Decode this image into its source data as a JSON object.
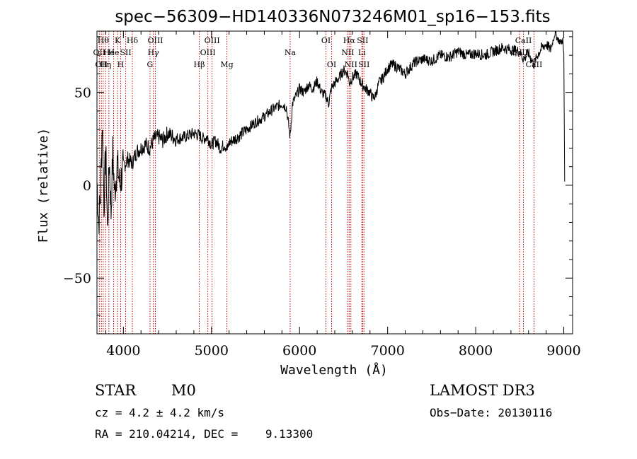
{
  "chart_data": {
    "type": "line",
    "title": "spec−56309−HD140336N073246M01_sp16−153.fits",
    "xlabel": "Wavelength (Å)",
    "ylabel": "Flux (relative)",
    "xlim": [
      3700,
      9100
    ],
    "ylim": [
      -80,
      83
    ],
    "xticks": [
      4000,
      5000,
      6000,
      7000,
      8000,
      9000
    ],
    "xtick_labels": [
      "4000",
      "5000",
      "6000",
      "7000",
      "8000",
      "9000"
    ],
    "yticks": [
      -50,
      0,
      50
    ],
    "ytick_labels": [
      "−50",
      "0",
      "50"
    ],
    "grid": false,
    "spectrum": {
      "name": "flux",
      "x": [
        3700,
        3720,
        3740,
        3760,
        3780,
        3800,
        3820,
        3840,
        3860,
        3880,
        3900,
        3930,
        3960,
        4000,
        4050,
        4100,
        4150,
        4200,
        4250,
        4300,
        4350,
        4400,
        4450,
        4500,
        4600,
        4700,
        4800,
        4860,
        4900,
        4950,
        5000,
        5050,
        5100,
        5150,
        5180,
        5200,
        5300,
        5400,
        5500,
        5600,
        5700,
        5800,
        5850,
        5893,
        5920,
        5960,
        6000,
        6050,
        6100,
        6150,
        6200,
        6250,
        6300,
        6330,
        6360,
        6400,
        6450,
        6500,
        6550,
        6563,
        6600,
        6650,
        6700,
        6750,
        6800,
        6830,
        6860,
        6900,
        6950,
        7000,
        7050,
        7100,
        7200,
        7300,
        7400,
        7500,
        7600,
        7700,
        7800,
        7900,
        8000,
        8100,
        8200,
        8300,
        8400,
        8500,
        8542,
        8600,
        8662,
        8700,
        8750,
        8800,
        8850,
        8900,
        8930,
        8960,
        8990,
        9000,
        9010
      ],
      "y": [
        2,
        -20,
        -5,
        35,
        -10,
        20,
        -25,
        15,
        -15,
        18,
        -5,
        12,
        0,
        10,
        14,
        12,
        18,
        20,
        22,
        20,
        25,
        26,
        24,
        28,
        25,
        26,
        28,
        27,
        25,
        26,
        22,
        24,
        20,
        22,
        19,
        23,
        26,
        30,
        34,
        37,
        41,
        44,
        42,
        26,
        44,
        48,
        52,
        50,
        54,
        52,
        56,
        50,
        48,
        44,
        52,
        55,
        58,
        62,
        60,
        55,
        58,
        60,
        55,
        52,
        50,
        47,
        48,
        55,
        58,
        63,
        65,
        64,
        60,
        66,
        68,
        67,
        70,
        69,
        72,
        70,
        71,
        70,
        72,
        74,
        73,
        72,
        68,
        71,
        65,
        70,
        74,
        76,
        73,
        82,
        79,
        77,
        78,
        70,
        2
      ]
    },
    "lines": [
      {
        "x": 3727,
        "label": "OII",
        "row": 1
      },
      {
        "x": 3750,
        "label": "OII",
        "row": 2
      },
      {
        "x": 3771,
        "label": "Hθ",
        "row": 0
      },
      {
        "x": 3798,
        "label": "Hη",
        "row": 2
      },
      {
        "x": 3835,
        "label": "He",
        "row": 1
      },
      {
        "x": 3889,
        "label": "He",
        "row": 1
      },
      {
        "x": 3934,
        "label": "K",
        "row": 0
      },
      {
        "x": 3969,
        "label": "H",
        "row": 2
      },
      {
        "x": 4026,
        "label": "SII",
        "row": 1
      },
      {
        "x": 4102,
        "label": "Hδ",
        "row": 0
      },
      {
        "x": 4302,
        "label": "G",
        "row": 2
      },
      {
        "x": 4340,
        "label": "Hγ",
        "row": 1
      },
      {
        "x": 4363,
        "label": "OIII",
        "row": 0
      },
      {
        "x": 4861,
        "label": "Hβ",
        "row": 2
      },
      {
        "x": 4959,
        "label": "OIII",
        "row": 1
      },
      {
        "x": 5007,
        "label": "OIII",
        "row": 0
      },
      {
        "x": 5175,
        "label": "Mg",
        "row": 2
      },
      {
        "x": 5893,
        "label": "Na",
        "row": 1
      },
      {
        "x": 6300,
        "label": "OI",
        "row": 0
      },
      {
        "x": 6364,
        "label": "OI",
        "row": 2
      },
      {
        "x": 6548,
        "label": "NII",
        "row": 1
      },
      {
        "x": 6563,
        "label": "Hα",
        "row": 0
      },
      {
        "x": 6583,
        "label": "NII",
        "row": 2
      },
      {
        "x": 6708,
        "label": "Li",
        "row": 1
      },
      {
        "x": 6716,
        "label": "SII",
        "row": 0
      },
      {
        "x": 6731,
        "label": "SII",
        "row": 2
      },
      {
        "x": 8498,
        "label": "CaII",
        "row": 1
      },
      {
        "x": 8542,
        "label": "CaII",
        "row": 0
      },
      {
        "x": 8662,
        "label": "CaII",
        "row": 2
      }
    ]
  },
  "info": {
    "class": "STAR",
    "subclass": "M0",
    "survey": "LAMOST DR3",
    "cz": "cz = 4.2 ± 4.2 km/s",
    "obs_date": "Obs−Date: 20130116",
    "radec": "RA = 210.04214, DEC =    9.13300"
  },
  "colors": {
    "spectrum": "#000000",
    "line_marker": "#cc0000",
    "axes": "#000000",
    "background": "#ffffff"
  }
}
